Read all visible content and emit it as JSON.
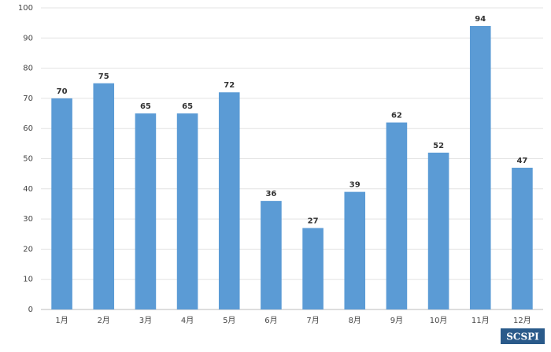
{
  "chart_data": {
    "type": "bar",
    "categories": [
      "1月",
      "2月",
      "3月",
      "4月",
      "5月",
      "6月",
      "7月",
      "8月",
      "9月",
      "10月",
      "11月",
      "12月"
    ],
    "values": [
      70,
      75,
      65,
      65,
      72,
      36,
      27,
      39,
      62,
      52,
      94,
      47
    ],
    "color": "#5b9bd5",
    "ylim": [
      0,
      100
    ],
    "yticks": [
      0,
      10,
      20,
      30,
      40,
      50,
      60,
      70,
      80,
      90,
      100
    ],
    "grid": true,
    "watermark": "SCSPI"
  }
}
